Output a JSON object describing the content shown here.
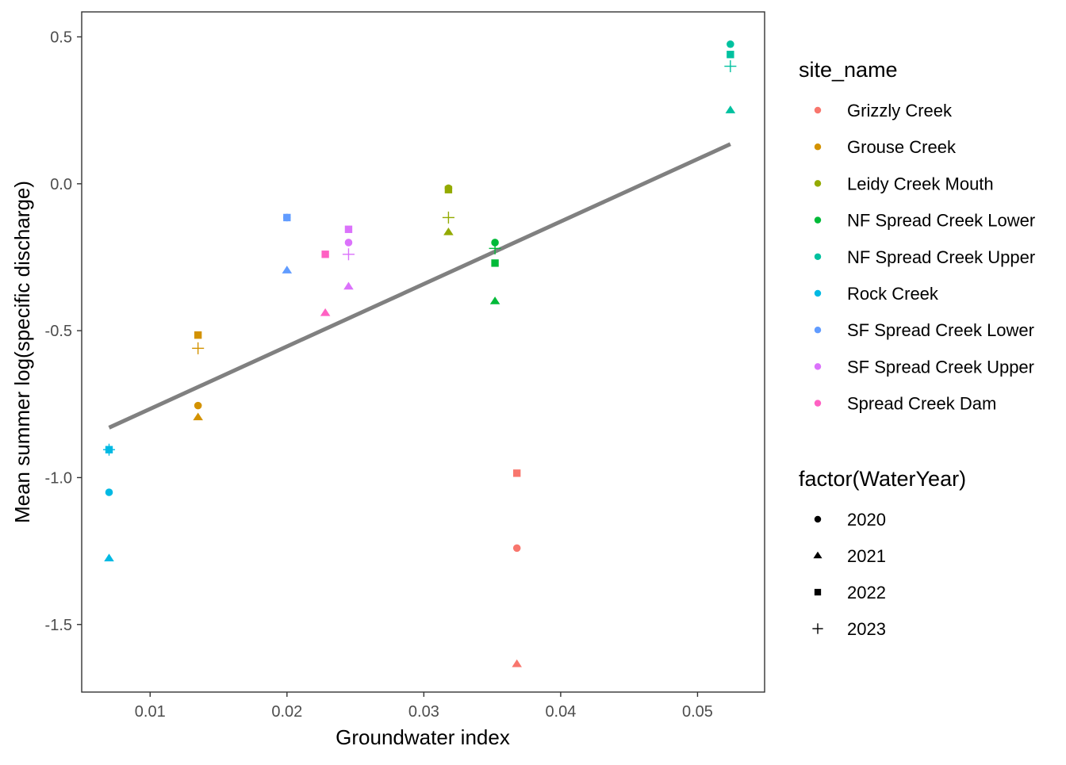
{
  "chart_data": {
    "type": "scatter",
    "title": "",
    "xlabel": "Groundwater index",
    "ylabel": "Mean summer log(specific discharge)",
    "xlim": [
      0.005,
      0.0549
    ],
    "ylim": [
      -1.73,
      0.585
    ],
    "xticks": [
      0.01,
      0.02,
      0.03,
      0.04,
      0.05
    ],
    "xtick_labels": [
      "0.01",
      "0.02",
      "0.03",
      "0.04",
      "0.05"
    ],
    "yticks": [
      -1.5,
      -1.0,
      -0.5,
      0.0,
      0.5
    ],
    "ytick_labels": [
      "-1.5",
      "-1.0",
      "-0.5",
      "0.0",
      "0.5"
    ],
    "grid": false,
    "legend_position": "right",
    "color_legend": {
      "title": "site_name",
      "entries": [
        {
          "label": "Grizzly Creek",
          "color": "#F8766D"
        },
        {
          "label": "Grouse Creek",
          "color": "#D39200"
        },
        {
          "label": "Leidy Creek Mouth",
          "color": "#93AA00"
        },
        {
          "label": "NF Spread Creek Lower",
          "color": "#00BA38"
        },
        {
          "label": "NF Spread Creek Upper",
          "color": "#00C19F"
        },
        {
          "label": "Rock Creek",
          "color": "#00B9E3"
        },
        {
          "label": "SF Spread Creek Lower",
          "color": "#619CFF"
        },
        {
          "label": "SF Spread Creek Upper",
          "color": "#DB72FB"
        },
        {
          "label": "Spread Creek Dam",
          "color": "#FF61C3"
        }
      ]
    },
    "shape_legend": {
      "title": "factor(WaterYear)",
      "entries": [
        {
          "label": "2020",
          "shape": "circle"
        },
        {
          "label": "2021",
          "shape": "triangle"
        },
        {
          "label": "2022",
          "shape": "square"
        },
        {
          "label": "2023",
          "shape": "plus"
        }
      ]
    },
    "series": [
      {
        "name": "Grizzly Creek",
        "color": "#F8766D",
        "points": [
          {
            "year": "2020",
            "x": 0.0368,
            "y": -1.24
          },
          {
            "year": "2021",
            "x": 0.0368,
            "y": -1.635
          },
          {
            "year": "2022",
            "x": 0.0368,
            "y": -0.985
          }
        ]
      },
      {
        "name": "Grouse Creek",
        "color": "#D39200",
        "points": [
          {
            "year": "2020",
            "x": 0.0135,
            "y": -0.755
          },
          {
            "year": "2021",
            "x": 0.0135,
            "y": -0.795
          },
          {
            "year": "2022",
            "x": 0.0135,
            "y": -0.515
          },
          {
            "year": "2023",
            "x": 0.0135,
            "y": -0.56
          }
        ]
      },
      {
        "name": "Leidy Creek Mouth",
        "color": "#93AA00",
        "points": [
          {
            "year": "2020",
            "x": 0.0318,
            "y": -0.015
          },
          {
            "year": "2021",
            "x": 0.0318,
            "y": -0.165
          },
          {
            "year": "2022",
            "x": 0.0318,
            "y": -0.02
          },
          {
            "year": "2023",
            "x": 0.0318,
            "y": -0.115
          }
        ]
      },
      {
        "name": "NF Spread Creek Lower",
        "color": "#00BA38",
        "points": [
          {
            "year": "2020",
            "x": 0.0352,
            "y": -0.2
          },
          {
            "year": "2021",
            "x": 0.0352,
            "y": -0.4
          },
          {
            "year": "2022",
            "x": 0.0352,
            "y": -0.27
          },
          {
            "year": "2023",
            "x": 0.0352,
            "y": -0.22
          }
        ]
      },
      {
        "name": "NF Spread Creek Upper",
        "color": "#00C19F",
        "points": [
          {
            "year": "2020",
            "x": 0.0524,
            "y": 0.475
          },
          {
            "year": "2021",
            "x": 0.0524,
            "y": 0.25
          },
          {
            "year": "2022",
            "x": 0.0524,
            "y": 0.44
          },
          {
            "year": "2023",
            "x": 0.0524,
            "y": 0.4
          }
        ]
      },
      {
        "name": "Rock Creek",
        "color": "#00B9E3",
        "points": [
          {
            "year": "2020",
            "x": 0.007,
            "y": -1.05
          },
          {
            "year": "2021",
            "x": 0.007,
            "y": -1.275
          },
          {
            "year": "2022",
            "x": 0.007,
            "y": -0.905
          },
          {
            "year": "2023",
            "x": 0.007,
            "y": -0.905
          }
        ]
      },
      {
        "name": "SF Spread Creek Lower",
        "color": "#619CFF",
        "points": [
          {
            "year": "2020",
            "x": 0.02,
            "y": -0.115
          },
          {
            "year": "2021",
            "x": 0.02,
            "y": -0.295
          },
          {
            "year": "2022",
            "x": 0.02,
            "y": -0.115
          }
        ]
      },
      {
        "name": "SF Spread Creek Upper",
        "color": "#DB72FB",
        "points": [
          {
            "year": "2020",
            "x": 0.0245,
            "y": -0.2
          },
          {
            "year": "2021",
            "x": 0.0245,
            "y": -0.35
          },
          {
            "year": "2022",
            "x": 0.0245,
            "y": -0.155
          },
          {
            "year": "2023",
            "x": 0.0245,
            "y": -0.24
          }
        ]
      },
      {
        "name": "Spread Creek Dam",
        "color": "#FF61C3",
        "points": [
          {
            "year": "2021",
            "x": 0.0228,
            "y": -0.44
          },
          {
            "year": "2022",
            "x": 0.0228,
            "y": -0.24
          }
        ]
      }
    ],
    "trend_line": {
      "color": "#808080",
      "x": [
        0.007,
        0.0524
      ],
      "y": [
        -0.83,
        0.135
      ]
    }
  }
}
